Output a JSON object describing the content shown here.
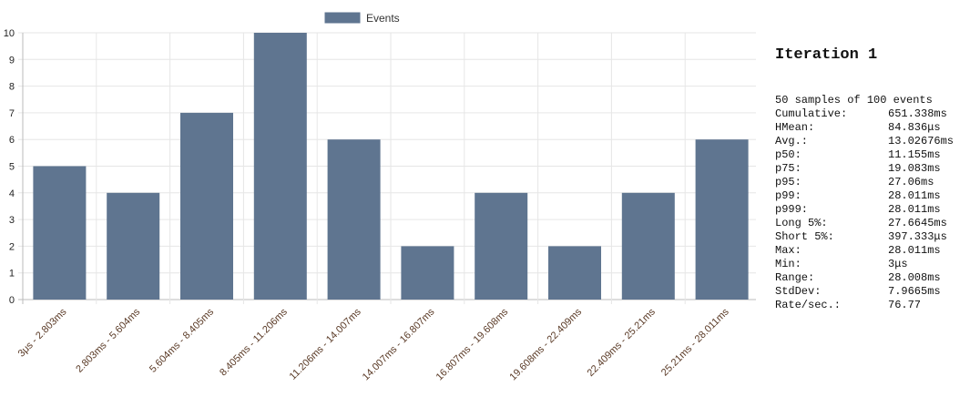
{
  "chart_data": {
    "type": "bar",
    "legend": {
      "label": "Events",
      "color": "#5f7590",
      "placement": "top-center"
    },
    "categories": [
      "3μs - 2.803ms",
      "2.803ms - 5.604ms",
      "5.604ms - 8.405ms",
      "8.405ms - 11.206ms",
      "11.206ms - 14.007ms",
      "14.007ms - 16.807ms",
      "16.807ms - 19.608ms",
      "19.608ms - 22.409ms",
      "22.409ms - 25.21ms",
      "25.21ms - 28.011ms"
    ],
    "series": [
      {
        "name": "Events",
        "values": [
          5,
          4,
          7,
          10,
          6,
          2,
          4,
          2,
          4,
          6
        ],
        "color": "#5f7590"
      }
    ],
    "yticks": [
      "0",
      "1",
      "2",
      "3",
      "4",
      "5",
      "6",
      "7",
      "8",
      "9",
      "10"
    ],
    "ylim": [
      0,
      10
    ],
    "grid": true
  },
  "stats": {
    "title": "Iteration 1",
    "summary": "50 samples of 100 events",
    "rows": [
      {
        "label": "Cumulative:",
        "value": "651.338ms"
      },
      {
        "label": "HMean:",
        "value": "84.836μs"
      },
      {
        "label": "Avg.:",
        "value": "13.02676ms"
      },
      {
        "label": "p50:",
        "value": "11.155ms"
      },
      {
        "label": "p75:",
        "value": "19.083ms"
      },
      {
        "label": "p95:",
        "value": "27.06ms"
      },
      {
        "label": "p99:",
        "value": "28.011ms"
      },
      {
        "label": "p999:",
        "value": "28.011ms"
      },
      {
        "label": "Long 5%:",
        "value": "27.6645ms"
      },
      {
        "label": "Short 5%:",
        "value": "397.333μs"
      },
      {
        "label": "Max:",
        "value": "28.011ms"
      },
      {
        "label": "Min:",
        "value": "3μs"
      },
      {
        "label": "Range:",
        "value": "28.008ms"
      },
      {
        "label": "StdDev:",
        "value": "7.9665ms"
      },
      {
        "label": "Rate/sec.:",
        "value": "76.77"
      }
    ]
  }
}
